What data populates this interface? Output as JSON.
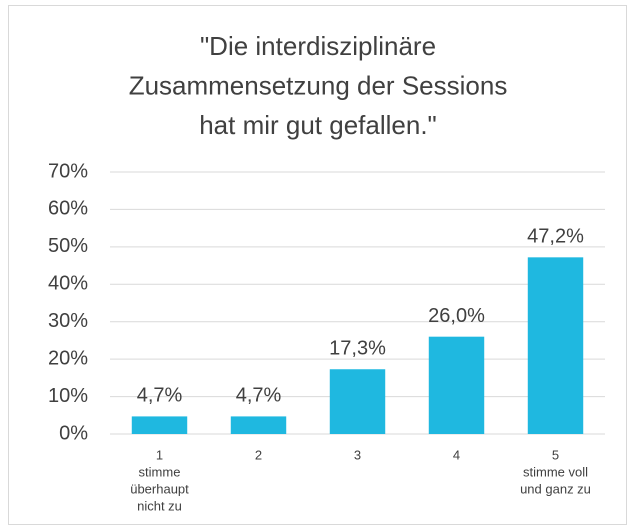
{
  "chart_data": {
    "type": "bar",
    "title": [
      "\"Die interdisziplinäre",
      "Zusammensetzung der Sessions",
      "hat mir gut gefallen.\""
    ],
    "categories": [
      [
        "1",
        "stimme",
        "überhaupt",
        "nicht zu"
      ],
      [
        "2"
      ],
      [
        "3"
      ],
      [
        "4"
      ],
      [
        "5",
        "stimme voll",
        "und ganz zu"
      ]
    ],
    "values": [
      4.7,
      4.7,
      17.3,
      26.0,
      47.2
    ],
    "value_labels": [
      "4,7%",
      "4,7%",
      "17,3%",
      "26,0%",
      "47,2%"
    ],
    "color": "#1fb8e0",
    "ylim": [
      0,
      70
    ],
    "yticks": [
      {
        "value": 0,
        "label": "0%"
      },
      {
        "value": 10,
        "label": "10%"
      },
      {
        "value": 20,
        "label": "20%"
      },
      {
        "value": 30,
        "label": "30%"
      },
      {
        "value": 40,
        "label": "40%"
      },
      {
        "value": 50,
        "label": "50%"
      },
      {
        "value": 60,
        "label": "60%"
      },
      {
        "value": 70,
        "label": "70%"
      }
    ],
    "grid": true
  }
}
